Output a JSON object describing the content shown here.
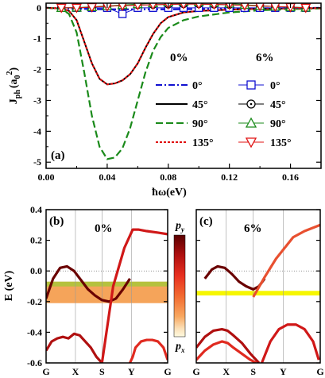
{
  "chart_data": [
    {
      "panel": "(a)",
      "type": "line",
      "xlabel": "ħω(eV)",
      "ylabel": "J",
      "ylabel_sub": "ph",
      "ylabel_unit_open": "(a",
      "ylabel_unit_sub": "0",
      "ylabel_unit_sup": "2",
      "ylabel_unit_close": ")",
      "xlim": [
        0.0,
        0.18
      ],
      "ylim": [
        -5.2,
        0.15
      ],
      "xticks": [
        "0.00",
        "0.04",
        "0.08",
        "0.12",
        "0.16"
      ],
      "yticks": [
        "0",
        "-1",
        "-2",
        "-3",
        "-4",
        "-5"
      ],
      "legend_headers": [
        "0%",
        "6%"
      ],
      "series": [
        {
          "name": "0°",
          "style": "dash-dot",
          "color": "#1010d0",
          "x": [
            0,
            0.01,
            0.02,
            0.03,
            0.04,
            0.06,
            0.08,
            0.1,
            0.12,
            0.14,
            0.16,
            0.18
          ],
          "y": [
            0,
            -0.02,
            -0.03,
            -0.04,
            -0.05,
            -0.05,
            -0.05,
            -0.04,
            -0.03,
            -0.02,
            -0.01,
            0
          ]
        },
        {
          "name": "45°",
          "style": "solid",
          "color": "#000000",
          "x": [
            0,
            0.01,
            0.015,
            0.02,
            0.025,
            0.03,
            0.035,
            0.04,
            0.045,
            0.05,
            0.055,
            0.06,
            0.065,
            0.07,
            0.075,
            0.08,
            0.09,
            0.1,
            0.12,
            0.14,
            0.16,
            0.18
          ],
          "y": [
            0,
            -0.02,
            -0.1,
            -0.4,
            -1.1,
            -1.8,
            -2.3,
            -2.48,
            -2.45,
            -2.35,
            -2.15,
            -1.8,
            -1.3,
            -0.85,
            -0.5,
            -0.3,
            -0.15,
            -0.1,
            -0.06,
            -0.03,
            -0.02,
            -0.01
          ]
        },
        {
          "name": "90°",
          "style": "dashed",
          "color": "#1a8a1a",
          "x": [
            0,
            0.01,
            0.015,
            0.02,
            0.025,
            0.03,
            0.035,
            0.04,
            0.045,
            0.05,
            0.055,
            0.06,
            0.065,
            0.07,
            0.075,
            0.08,
            0.09,
            0.1,
            0.12,
            0.14,
            0.16,
            0.18
          ],
          "y": [
            0,
            -0.03,
            -0.2,
            -0.8,
            -2.1,
            -3.5,
            -4.5,
            -4.9,
            -4.85,
            -4.55,
            -3.9,
            -3.0,
            -2.1,
            -1.4,
            -0.95,
            -0.65,
            -0.4,
            -0.28,
            -0.15,
            -0.08,
            -0.04,
            -0.02
          ]
        },
        {
          "name": "135°",
          "style": "dotted",
          "color": "#e01010",
          "x": [
            0,
            0.01,
            0.015,
            0.02,
            0.025,
            0.03,
            0.035,
            0.04,
            0.045,
            0.05,
            0.055,
            0.06,
            0.065,
            0.07,
            0.075,
            0.08,
            0.09,
            0.1,
            0.12,
            0.14,
            0.16,
            0.18
          ],
          "y": [
            0,
            -0.02,
            -0.1,
            -0.4,
            -1.1,
            -1.8,
            -2.3,
            -2.48,
            -2.45,
            -2.35,
            -2.15,
            -1.8,
            -1.3,
            -0.85,
            -0.5,
            -0.3,
            -0.15,
            -0.1,
            -0.06,
            -0.03,
            -0.02,
            -0.01
          ]
        },
        {
          "name": "0°",
          "group": "6%",
          "marker": "square",
          "color": "#1010d0",
          "x": [
            0.01,
            0.02,
            0.03,
            0.04,
            0.05,
            0.06,
            0.07,
            0.08,
            0.09,
            0.1,
            0.11,
            0.12,
            0.13,
            0.14,
            0.15,
            0.16,
            0.17
          ],
          "y": [
            0,
            0,
            0,
            0,
            -0.2,
            0,
            0,
            0,
            0,
            0,
            0,
            0,
            0,
            0,
            0,
            0,
            0
          ]
        },
        {
          "name": "45°",
          "group": "6%",
          "marker": "circle",
          "color": "#000000",
          "x": [
            0.01,
            0.02,
            0.03,
            0.04,
            0.05,
            0.06,
            0.07,
            0.08,
            0.09,
            0.1,
            0.11,
            0.12,
            0.13,
            0.14,
            0.15,
            0.16,
            0.17
          ],
          "y": [
            0,
            0,
            0.02,
            0.05,
            0.07,
            0.09,
            0.1,
            0.11,
            0.12,
            0.12,
            0.11,
            0.1,
            0.08,
            0.06,
            0.04,
            0.02,
            0
          ]
        },
        {
          "name": "90°",
          "group": "6%",
          "marker": "triangle-up",
          "color": "#1a8a1a",
          "x": [
            0.01,
            0.02,
            0.03,
            0.04,
            0.05,
            0.06,
            0.07,
            0.08,
            0.09,
            0.1,
            0.11,
            0.12,
            0.13,
            0.14,
            0.15,
            0.16,
            0.17
          ],
          "y": [
            0,
            0.01,
            0.03,
            0.06,
            0.09,
            0.12,
            0.15,
            0.18,
            0.2,
            0.19,
            0.17,
            0.14,
            0.1,
            0.07,
            0.04,
            0.02,
            0.01
          ]
        },
        {
          "name": "135°",
          "group": "6%",
          "marker": "triangle-down",
          "color": "#e01010",
          "x": [
            0.01,
            0.02,
            0.03,
            0.04,
            0.05,
            0.06,
            0.07,
            0.08,
            0.09,
            0.1,
            0.11,
            0.12,
            0.13,
            0.14,
            0.15,
            0.16,
            0.17
          ],
          "y": [
            0,
            0,
            0.02,
            0.05,
            0.07,
            0.09,
            0.1,
            0.11,
            0.12,
            0.12,
            0.11,
            0.1,
            0.08,
            0.06,
            0.04,
            0.02,
            0
          ]
        }
      ]
    },
    {
      "panel": "(b)",
      "type": "line",
      "title": "0%",
      "ylabel": "E (eV)",
      "ylim": [
        -0.6,
        0.4
      ],
      "yticks": [
        "0.4",
        "0.2",
        "0.0",
        "-0.2",
        "-0.4",
        "-0.6"
      ],
      "kpoints": [
        "G",
        "X",
        "S",
        "Y",
        "G"
      ],
      "gap_band": [
        -0.21,
        -0.07
      ],
      "gap_band_color": "#f5a45a",
      "gap_edge_color": "#9acd32",
      "bands": [
        {
          "name": "valence-1",
          "x": [
            0,
            0.25,
            0.5,
            0.75,
            1.0,
            1.25,
            1.5,
            1.75,
            2.0,
            2.25,
            2.5,
            2.75,
            3.0
          ],
          "y": [
            -0.18,
            -0.05,
            0.02,
            0.03,
            0.0,
            -0.06,
            -0.12,
            -0.16,
            -0.19,
            -0.2,
            -0.18,
            -0.12,
            -0.05
          ]
        },
        {
          "name": "valence-2",
          "x": [
            0,
            0.2,
            0.4,
            0.6,
            0.8,
            1.0,
            1.2,
            1.4,
            1.6,
            1.8,
            2.0
          ],
          "y": [
            -0.52,
            -0.46,
            -0.44,
            -0.43,
            -0.44,
            -0.41,
            -0.42,
            -0.46,
            -0.5,
            -0.56,
            -0.6
          ]
        },
        {
          "name": "valence-3",
          "x": [
            3.0,
            3.1,
            3.2,
            3.4,
            3.6,
            3.8,
            4.0,
            4.2,
            4.35
          ],
          "y": [
            -0.6,
            -0.56,
            -0.5,
            -0.46,
            -0.45,
            -0.45,
            -0.46,
            -0.5,
            -0.58
          ]
        },
        {
          "name": "conduction-1",
          "x": [
            2.0,
            2.4,
            2.8,
            3.1,
            3.3,
            3.6,
            4.0,
            4.35
          ],
          "y": [
            -0.6,
            -0.1,
            0.15,
            0.27,
            0.27,
            0.26,
            0.25,
            0.24
          ]
        }
      ]
    },
    {
      "panel": "(c)",
      "type": "line",
      "title": "6%",
      "ylim": [
        -0.6,
        0.4
      ],
      "kpoints": [
        "G",
        "X",
        "S",
        "Y",
        "G"
      ],
      "gap_band": [
        -0.16,
        -0.13
      ],
      "gap_band_color": "#f6f600",
      "bands": [
        {
          "name": "valence-1",
          "x": [
            0.3,
            0.55,
            0.75,
            1.0,
            1.25,
            1.5,
            1.75,
            2.0,
            2.2,
            2.4
          ],
          "y": [
            -0.05,
            0.01,
            0.03,
            0.02,
            -0.02,
            -0.07,
            -0.1,
            -0.12,
            -0.1,
            -0.05
          ]
        },
        {
          "name": "valence-2",
          "x": [
            0,
            0.3,
            0.6,
            0.9,
            1.1,
            1.3,
            1.6,
            1.9,
            2.2
          ],
          "y": [
            -0.5,
            -0.43,
            -0.39,
            -0.38,
            -0.39,
            -0.42,
            -0.47,
            -0.54,
            -0.6
          ]
        },
        {
          "name": "valence-3",
          "x": [
            0,
            0.3,
            0.6,
            0.9,
            1.1,
            1.3,
            1.6,
            1.9,
            2.1
          ],
          "y": [
            -0.58,
            -0.52,
            -0.48,
            -0.46,
            -0.47,
            -0.5,
            -0.54,
            -0.58,
            -0.6
          ]
        },
        {
          "name": "valence-4",
          "x": [
            2.3,
            2.6,
            2.9,
            3.2,
            3.5,
            3.8,
            4.1,
            4.3
          ],
          "y": [
            -0.6,
            -0.46,
            -0.38,
            -0.35,
            -0.35,
            -0.38,
            -0.46,
            -0.58
          ]
        },
        {
          "name": "conduction-1",
          "x": [
            2.0,
            2.4,
            2.8,
            3.1,
            3.4,
            3.8,
            4.35
          ],
          "y": [
            -0.17,
            -0.04,
            0.08,
            0.15,
            0.22,
            0.26,
            0.3
          ]
        }
      ]
    },
    {
      "panel": "colorbar",
      "type": "heatmap",
      "top_label": "p",
      "top_label_sub": "y",
      "bottom_label": "p",
      "bottom_label_sub": "x",
      "colors": [
        "#5a0000",
        "#b01010",
        "#e83020",
        "#f26a30",
        "#f8a860",
        "#fbe0b8",
        "#fffbe0"
      ]
    }
  ]
}
